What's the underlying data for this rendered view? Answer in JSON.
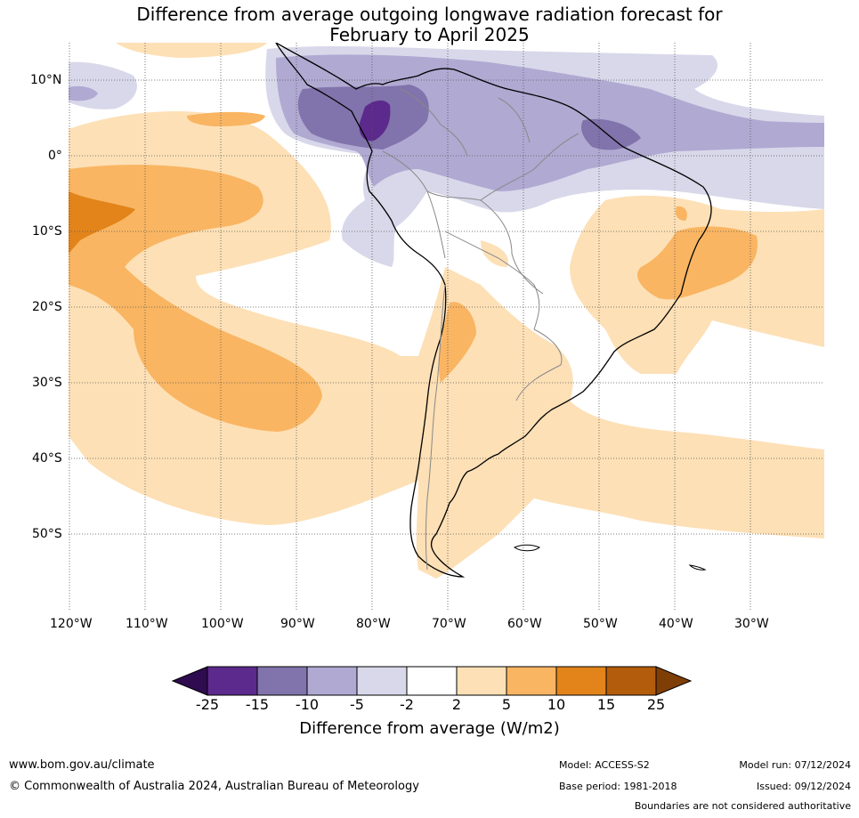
{
  "title_line1": "Difference from average outgoing longwave radiation forecast for",
  "title_line2": "February to April 2025",
  "lat_labels": [
    "10°N",
    "0°",
    "10°S",
    "20°S",
    "30°S",
    "40°S",
    "50°S"
  ],
  "lon_labels": [
    "120°W",
    "110°W",
    "100°W",
    "90°W",
    "80°W",
    "70°W",
    "60°W",
    "50°W",
    "40°W",
    "30°W"
  ],
  "colorbar": {
    "title": "Difference from average (W/m2)",
    "ticks": [
      "-25",
      "-15",
      "-10",
      "-5",
      "-2",
      "2",
      "5",
      "10",
      "15",
      "25"
    ],
    "colors": [
      "#2f0b4f",
      "#5c2a8c",
      "#8173ab",
      "#b0a9d2",
      "#d8d8ea",
      "#ffffff",
      "#fde0b6",
      "#f9b562",
      "#e2841a",
      "#b35c0c",
      "#7f3e06"
    ]
  },
  "footer": {
    "website": "www.bom.gov.au/climate",
    "copyright": "© Commonwealth of Australia 2024, Australian Bureau of Meteorology",
    "model": "Model: ACCESS-S2",
    "base_period": "Base period: 1981-2018",
    "model_run": "Model run: 07/12/2024",
    "issued": "Issued: 09/12/2024",
    "boundaries": "Boundaries are not considered authoritative"
  }
}
